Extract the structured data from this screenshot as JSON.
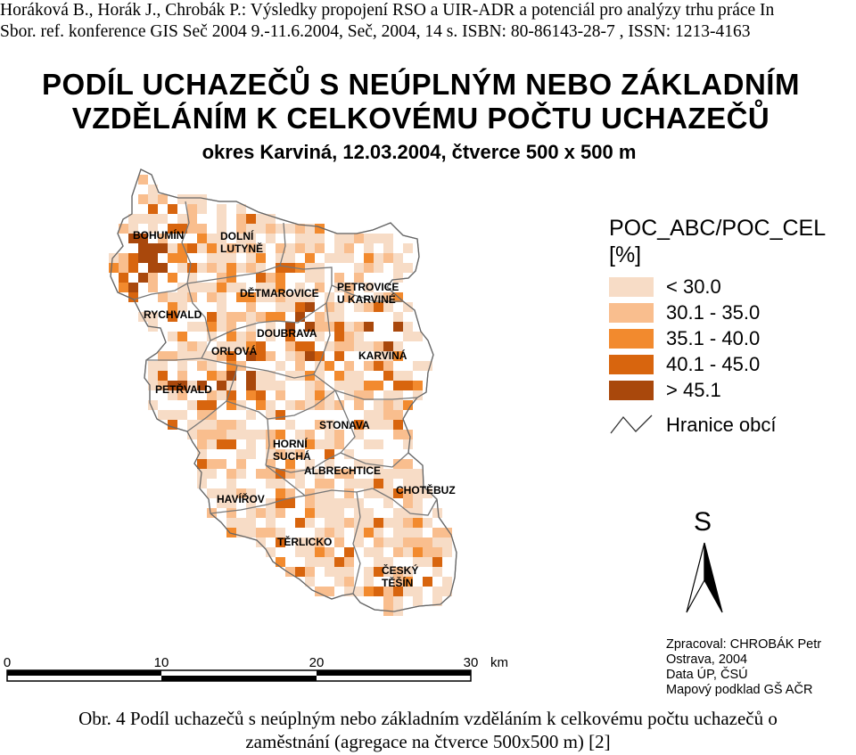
{
  "header": {
    "line1": "Horáková B., Horák J., Chrobák P.: Výsledky propojení RSO a UIR-ADR a potenciál pro analýzy trhu práce In",
    "line2": "Sbor. ref. konference GIS Seč 2004 9.-11.6.2004, Seč, 2004,  14 s. ISBN: 80-86143-28-7 , ISSN: 1213-4163"
  },
  "map_title": {
    "line1": "PODÍL UCHAZEČŮ S NEÚPLNÝM NEBO ZÁKLADNÍM",
    "line2": "VZDĚLÁNÍM K CELKOVÉMU POČTU UCHAZEČŮ",
    "subtitle": "okres Karviná, 12.03.2004, čtverce 500 x 500 m"
  },
  "municipalities": [
    {
      "name": "BOHUMÍN",
      "lines": [
        "BOHUMÍN"
      ]
    },
    {
      "name": "DOLNÍ LUTYNĚ",
      "lines": [
        "DOLNÍ",
        "LUTYNĚ"
      ]
    },
    {
      "name": "DĚTMAROVICE",
      "lines": [
        "DĚTMAROVICE"
      ]
    },
    {
      "name": "PETROVICE U KARVINÉ",
      "lines": [
        "PETROVICE",
        "U KARVINÉ"
      ]
    },
    {
      "name": "RYCHVALD",
      "lines": [
        "RYCHVALD"
      ]
    },
    {
      "name": "DOUBRAVA",
      "lines": [
        "DOUBRAVA"
      ]
    },
    {
      "name": "ORLOVÁ",
      "lines": [
        "ORLOVÁ"
      ]
    },
    {
      "name": "KARVINÁ",
      "lines": [
        "KARVINÁ"
      ]
    },
    {
      "name": "PETŘVALD",
      "lines": [
        "PETŘVALD"
      ]
    },
    {
      "name": "STONAVA",
      "lines": [
        "STONAVA"
      ]
    },
    {
      "name": "HORNÍ SUCHÁ",
      "lines": [
        "HORNÍ",
        "SUCHÁ"
      ]
    },
    {
      "name": "ALBRECHTICE",
      "lines": [
        "ALBRECHTICE"
      ]
    },
    {
      "name": "CHOTĚBUZ",
      "lines": [
        "CHOTĚBUZ"
      ]
    },
    {
      "name": "HAVÍŘOV",
      "lines": [
        "HAVÍŘOV"
      ]
    },
    {
      "name": "TĚRLICKO",
      "lines": [
        "TĚRLICKO"
      ]
    },
    {
      "name": "ČESKÝ TĚŠÍN",
      "lines": [
        "ČESKÝ",
        "TĚŠÍN"
      ]
    }
  ],
  "legend": {
    "field": "POC_ABC/POC_CEL",
    "unit": "[%]",
    "classes": [
      {
        "label": "< 30.0",
        "color": "#f7dcc6"
      },
      {
        "label": "30.1 - 35.0",
        "color": "#f9be8e"
      },
      {
        "label": "35.1 - 40.0",
        "color": "#f28a2e"
      },
      {
        "label": "40.1 - 45.0",
        "color": "#d8650e"
      },
      {
        "label": "> 45.1",
        "color": "#a9480c"
      }
    ],
    "border_label": "Hranice obcí"
  },
  "north_arrow": {
    "label": "S"
  },
  "scale_bar": {
    "ticks": [
      "0",
      "10",
      "20",
      "30"
    ],
    "unit": "km"
  },
  "credits": {
    "line1": "Zpracoval: CHROBÁK Petr",
    "line2": "Ostrava, 2004",
    "line3": "Data ÚP, ČSÚ",
    "line4": "Mapový podklad GŠ AČR"
  },
  "caption": {
    "line1": "Obr. 4 Podíl uchazečů s neúplným nebo základním vzděláním k celkovému počtu uchazečů o",
    "line2": "zaměstnání (agregace na čtverce 500x500 m) [2]"
  }
}
